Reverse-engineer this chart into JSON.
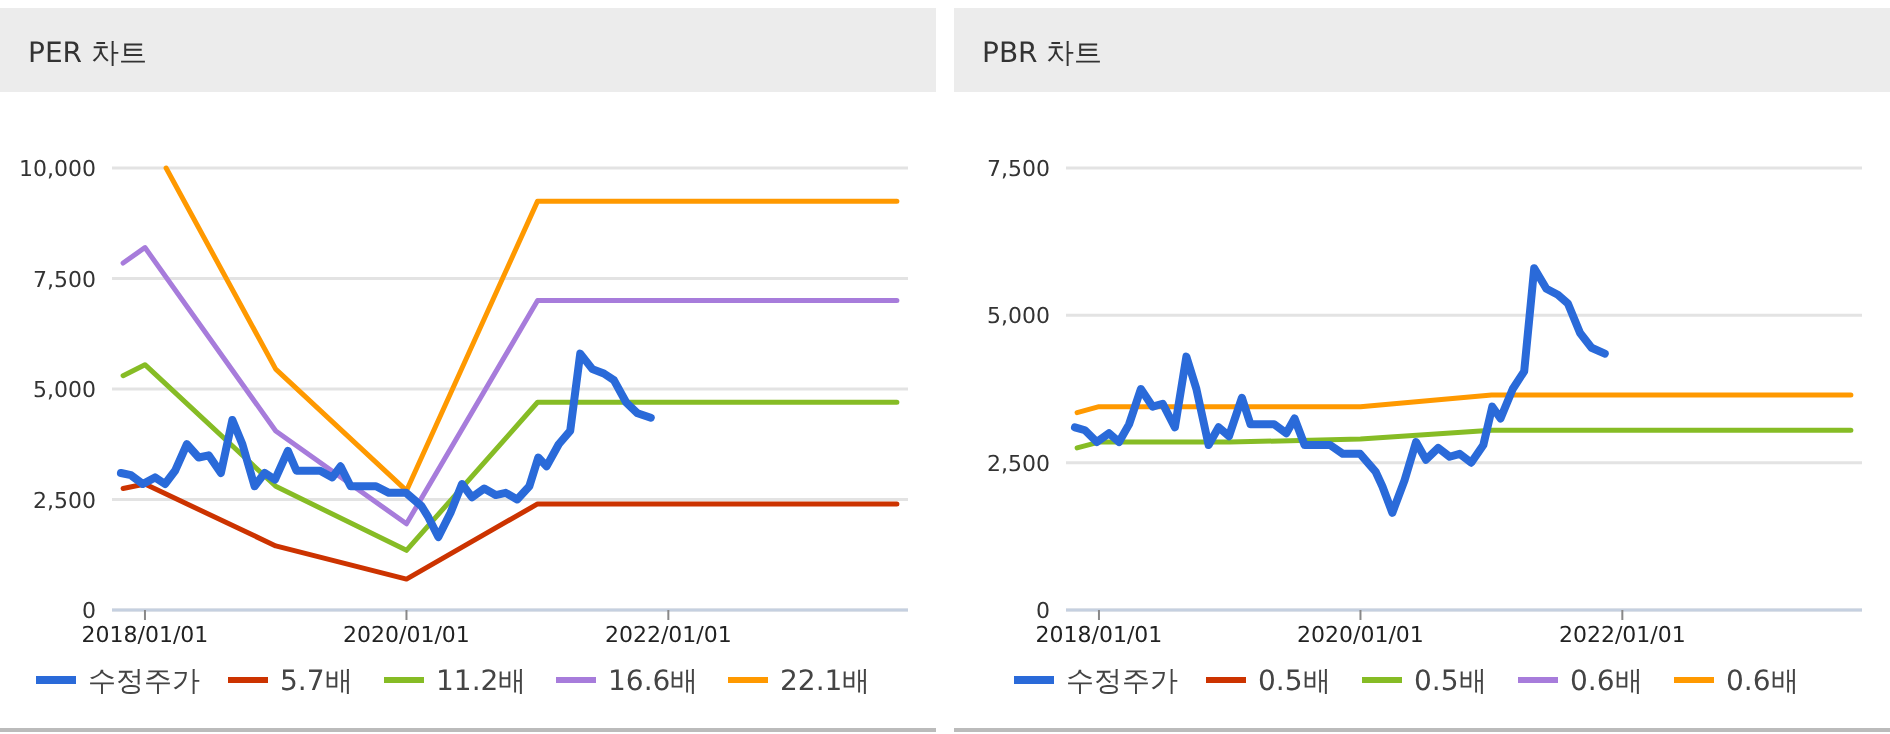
{
  "chart_data": [
    {
      "type": "line",
      "title": "PER 차트",
      "xlim": [
        "2017-10",
        "2023-11"
      ],
      "xticks": [
        {
          "value": "2018-01-01",
          "label": "2018/01/01"
        },
        {
          "value": "2020-01-01",
          "label": "2020/01/01"
        },
        {
          "value": "2022-01-01",
          "label": "2022/01/01"
        }
      ],
      "ylim": [
        0,
        10000
      ],
      "yticks": [
        {
          "value": 0,
          "label": "0"
        },
        {
          "value": 2500,
          "label": "2,500"
        },
        {
          "value": 5000,
          "label": "5,000"
        },
        {
          "value": 7500,
          "label": "7,500"
        },
        {
          "value": 10000,
          "label": "10,000"
        }
      ],
      "grid": "y",
      "legend": "bottom",
      "series": [
        {
          "name": "5.7배",
          "color": "#cc3300",
          "x": [
            "2017-11",
            "2018-01",
            "2019-01",
            "2020-01",
            "2021-01",
            "2023-10"
          ],
          "values": [
            2750,
            2850,
            1450,
            700,
            2400,
            2400
          ]
        },
        {
          "name": "11.2배",
          "color": "#86bc25",
          "x": [
            "2017-11",
            "2018-01",
            "2019-01",
            "2020-01",
            "2021-01",
            "2023-10"
          ],
          "values": [
            5300,
            5550,
            2800,
            1350,
            4700,
            4700
          ]
        },
        {
          "name": "16.6배",
          "color": "#a77cdb",
          "x": [
            "2017-11",
            "2018-01",
            "2019-01",
            "2020-01",
            "2021-01",
            "2023-10"
          ],
          "values": [
            7850,
            8200,
            4050,
            1950,
            7000,
            7000
          ]
        },
        {
          "name": "22.1배",
          "color": "#ff9900",
          "x": [
            "2018-03",
            "2019-01",
            "2020-01",
            "2021-01",
            "2023-10"
          ],
          "values": [
            10000,
            5450,
            2700,
            9250,
            9250
          ]
        },
        {
          "name": "수정주가",
          "color": "#2a6ad9",
          "x": [
            "2017-10-26",
            "2017-11-23",
            "2017-12-26",
            "2018-01-29",
            "2018-02-26",
            "2018-03-26",
            "2018-04-28",
            "2018-05-31",
            "2018-06-28",
            "2018-08-01",
            "2018-09-02",
            "2018-09-30",
            "2018-11-03",
            "2018-12-01",
            "2018-12-30",
            "2019-02-04",
            "2019-02-28",
            "2019-04-03",
            "2019-05-05",
            "2019-06-08",
            "2019-07-01",
            "2019-07-29",
            "2019-09-05",
            "2019-10-08",
            "2019-11-13",
            "2019-12-31",
            "2020-02-12",
            "2020-03-02",
            "2020-03-30",
            "2020-05-03",
            "2020-06-04",
            "2020-07-02",
            "2020-08-05",
            "2020-09-06",
            "2020-10-04",
            "2020-11-05",
            "2020-12-09",
            "2021-01-03",
            "2021-01-26",
            "2021-03-01",
            "2021-04-02",
            "2021-04-30",
            "2021-06-03",
            "2021-07-05",
            "2021-08-02",
            "2021-09-05",
            "2021-10-07",
            "2021-11-13"
          ],
          "values": [
            3100,
            3050,
            2850,
            3000,
            2850,
            3150,
            3750,
            3450,
            3500,
            3100,
            4300,
            3750,
            2800,
            3100,
            2950,
            3600,
            3150,
            3150,
            3150,
            3000,
            3250,
            2800,
            2800,
            2800,
            2650,
            2650,
            2350,
            2100,
            1650,
            2200,
            2850,
            2550,
            2750,
            2600,
            2650,
            2500,
            2800,
            3450,
            3250,
            3750,
            4050,
            5800,
            5450,
            5350,
            5200,
            4700,
            4450,
            4350
          ]
        }
      ]
    },
    {
      "type": "line",
      "title": "PBR 차트",
      "xlim": [
        "2017-10",
        "2023-11"
      ],
      "xticks": [
        {
          "value": "2018-01-01",
          "label": "2018/01/01"
        },
        {
          "value": "2020-01-01",
          "label": "2020/01/01"
        },
        {
          "value": "2022-01-01",
          "label": "2022/01/01"
        }
      ],
      "ylim": [
        0,
        7500
      ],
      "yticks": [
        {
          "value": 0,
          "label": "0"
        },
        {
          "value": 2500,
          "label": "2,500"
        },
        {
          "value": 5000,
          "label": "5,000"
        },
        {
          "value": 7500,
          "label": "7,500"
        }
      ],
      "grid": "y",
      "legend": "bottom",
      "series": [
        {
          "name": "0.5배",
          "color": "#cc3300"
        },
        {
          "name": "0.5배",
          "color": "#86bc25",
          "x": [
            "2017-11",
            "2018-01",
            "2019-01",
            "2020-01",
            "2021-01",
            "2023-10"
          ],
          "values": [
            2750,
            2850,
            2850,
            2900,
            3050,
            3050
          ]
        },
        {
          "name": "0.6배",
          "color": "#a77cdb"
        },
        {
          "name": "0.6배",
          "color": "#ff9900",
          "x": [
            "2017-11",
            "2018-01",
            "2019-01",
            "2020-01",
            "2021-01",
            "2023-10"
          ],
          "values": [
            3350,
            3450,
            3450,
            3450,
            3650,
            3650
          ]
        },
        {
          "name": "수정주가",
          "color": "#2a6ad9",
          "x": [
            "2017-10-26",
            "2017-11-23",
            "2017-12-26",
            "2018-01-29",
            "2018-02-26",
            "2018-03-26",
            "2018-04-28",
            "2018-05-31",
            "2018-06-28",
            "2018-08-01",
            "2018-09-02",
            "2018-09-30",
            "2018-11-03",
            "2018-12-01",
            "2018-12-30",
            "2019-02-04",
            "2019-02-28",
            "2019-04-03",
            "2019-05-05",
            "2019-06-08",
            "2019-07-01",
            "2019-07-29",
            "2019-09-05",
            "2019-10-08",
            "2019-11-13",
            "2019-12-31",
            "2020-02-12",
            "2020-03-02",
            "2020-03-30",
            "2020-05-03",
            "2020-06-04",
            "2020-07-02",
            "2020-08-05",
            "2020-09-06",
            "2020-10-04",
            "2020-11-05",
            "2020-12-09",
            "2021-01-03",
            "2021-01-26",
            "2021-03-01",
            "2021-04-02",
            "2021-04-30",
            "2021-06-03",
            "2021-07-05",
            "2021-08-02",
            "2021-09-05",
            "2021-10-07",
            "2021-11-13"
          ],
          "values": [
            3100,
            3050,
            2850,
            3000,
            2850,
            3150,
            3750,
            3450,
            3500,
            3100,
            4300,
            3750,
            2800,
            3100,
            2950,
            3600,
            3150,
            3150,
            3150,
            3000,
            3250,
            2800,
            2800,
            2800,
            2650,
            2650,
            2350,
            2100,
            1650,
            2200,
            2850,
            2550,
            2750,
            2600,
            2650,
            2500,
            2800,
            3450,
            3250,
            3750,
            4050,
            5800,
            5450,
            5350,
            5200,
            4700,
            4450,
            4350
          ]
        }
      ]
    }
  ]
}
